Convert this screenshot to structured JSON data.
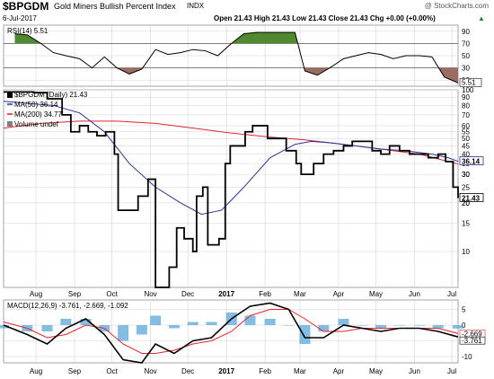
{
  "header": {
    "symbol": "$BPGDM",
    "name": "Gold Miners Bullish Percent Index",
    "exchange": "INDX",
    "watermark": "@ StockCharts.com",
    "date": "6-Jul-2017",
    "quote": "Open 21.43  High 21.43  Low 21.43  Close 21.43  Chg +0.00 (+0.00%)",
    "quote_arrow": "▲"
  },
  "colors": {
    "price": "#000000",
    "ma50": "#2e3192",
    "ma200": "#e0262b",
    "volume": "#808080",
    "rsi_fill_high": "#4f8a2f",
    "rsi_fill_low": "#9a6d62",
    "macd_hist": "#5aa7d8",
    "macd_signal": "#e0262b",
    "grid": "#cfd3d9"
  },
  "chart_data": [
    {
      "type": "line",
      "title": "RSI(14) 5.51",
      "legend": "top-left",
      "grid": true,
      "ylim": [
        0,
        100
      ],
      "ticks": [
        "90",
        "70",
        "50",
        "30",
        "10"
      ],
      "levels": [
        70,
        30
      ],
      "last_label": "5.51",
      "series": [
        {
          "name": "RSI(14)",
          "x": [
            "2017-07-15",
            "2017-07-25",
            "2017-08-05",
            "2017-08-15",
            "2017-08-25",
            "2017-09-05",
            "2017-09-15",
            "2017-09-25",
            "2017-10-05",
            "2017-10-15",
            "2017-10-25",
            "2017-11-05",
            "2017-11-15",
            "2017-11-25",
            "2017-12-05",
            "2017-12-15",
            "2017-12-25",
            "2018-01-05",
            "2018-01-15",
            "2018-01-25",
            "2018-02-05",
            "2018-02-15",
            "2018-02-25",
            "2018-03-05",
            "2018-03-15",
            "2018-03-25",
            "2018-04-05",
            "2018-04-15",
            "2018-04-25",
            "2018-05-05",
            "2018-05-15",
            "2018-05-25",
            "2018-06-05",
            "2018-06-15",
            "2018-06-25",
            "2018-07-06"
          ],
          "values": [
            86,
            84,
            70,
            55,
            50,
            45,
            30,
            48,
            30,
            20,
            28,
            60,
            52,
            55,
            60,
            58,
            50,
            70,
            86,
            88,
            88,
            88,
            88,
            25,
            18,
            30,
            45,
            50,
            55,
            52,
            45,
            50,
            50,
            48,
            15,
            5.51
          ]
        }
      ]
    },
    {
      "type": "line",
      "title": "$BPGDM (Daily) 21.43",
      "legend": "top-left",
      "grid": true,
      "scale": "log",
      "ylim": [
        6,
        100
      ],
      "ticks": [
        "100",
        "90",
        "80",
        "70",
        "60",
        "55",
        "50",
        "45",
        "40",
        "35",
        "30",
        "25",
        "20",
        "15",
        "10"
      ],
      "x_ticks": [
        "Aug",
        "Sep",
        "Oct",
        "Nov",
        "Dec",
        "2017",
        "Feb",
        "Mar",
        "Apr",
        "May",
        "Jun",
        "Jul"
      ],
      "series": [
        {
          "name": "$BPGDM",
          "x": [
            "2017-07-06",
            "2017-07-30",
            "2017-08-10",
            "2017-08-22",
            "2017-08-29",
            "2017-09-05",
            "2017-09-12",
            "2017-09-19",
            "2017-09-26",
            "2017-10-03",
            "2017-10-06",
            "2017-10-15",
            "2017-10-22",
            "2017-10-30",
            "2017-11-05",
            "2017-11-12",
            "2017-11-16",
            "2017-11-22",
            "2017-11-28",
            "2017-12-05",
            "2017-12-08",
            "2017-12-13",
            "2017-12-17",
            "2017-12-21",
            "2017-12-26",
            "2017-12-31",
            "2018-01-04",
            "2018-01-10",
            "2018-01-16",
            "2018-01-22",
            "2018-01-28",
            "2018-02-03",
            "2018-02-10",
            "2018-02-18",
            "2018-02-26",
            "2018-03-02",
            "2018-03-06",
            "2018-03-12",
            "2018-03-20",
            "2018-03-28",
            "2018-04-05",
            "2018-04-12",
            "2018-04-20",
            "2018-04-28",
            "2018-05-05",
            "2018-05-12",
            "2018-05-20",
            "2018-05-28",
            "2018-06-05",
            "2018-06-12",
            "2018-06-20",
            "2018-06-26",
            "2018-07-02",
            "2018-07-06"
          ],
          "values": [
            97,
            96,
            88,
            70,
            55,
            60,
            55,
            52,
            55,
            40,
            18,
            18,
            22,
            28,
            6,
            6,
            8,
            14,
            12,
            10,
            22,
            25,
            11,
            11,
            12,
            35,
            45,
            45,
            55,
            60,
            60,
            50,
            50,
            42,
            35,
            30,
            30,
            35,
            40,
            42,
            45,
            48,
            48,
            42,
            40,
            45,
            42,
            40,
            40,
            38,
            40,
            36,
            25,
            21.43
          ]
        },
        {
          "name": "MA(50) 36.14",
          "x": [
            "2017-07-06",
            "2017-08-15",
            "2017-09-05",
            "2017-09-25",
            "2017-10-15",
            "2017-11-05",
            "2017-11-25",
            "2017-12-12",
            "2017-12-28",
            "2018-01-15",
            "2018-02-05",
            "2018-02-25",
            "2018-03-10",
            "2018-03-25",
            "2018-04-15",
            "2018-05-05",
            "2018-05-25",
            "2018-06-15",
            "2018-06-28",
            "2018-07-06"
          ],
          "values": [
            85,
            80,
            72,
            55,
            35,
            25,
            20,
            17,
            18,
            25,
            38,
            46,
            48,
            47,
            45,
            43,
            42,
            40,
            38,
            36.14
          ]
        },
        {
          "name": "MA(200) 34.77",
          "x": [
            "2017-07-06",
            "2017-08-05",
            "2017-09-05",
            "2017-10-05",
            "2017-11-05",
            "2017-12-05",
            "2018-01-05",
            "2018-02-05",
            "2018-03-05",
            "2018-04-05",
            "2018-05-05",
            "2018-06-05",
            "2018-07-06"
          ],
          "values": [
            58,
            62,
            64,
            64,
            62,
            58,
            54,
            51,
            49,
            46,
            43,
            40,
            34.77
          ]
        }
      ],
      "last_labels": [
        "36.14",
        "30",
        "21.43",
        "20"
      ],
      "volume_label": "Volume undef"
    },
    {
      "type": "line",
      "title": "MACD(12,26,9) -3.761, -2.669, -1.092",
      "legend": "top-left",
      "grid": true,
      "ylim": [
        -12,
        8
      ],
      "ticks": [
        "5",
        "0",
        "-5",
        "-10"
      ],
      "last_labels": [
        "-2.669",
        "-3.761"
      ],
      "x_ticks": [
        "Aug",
        "Sep",
        "Oct",
        "Nov",
        "Dec",
        "2017",
        "Feb",
        "Mar",
        "Apr",
        "May",
        "Jun",
        "Jul"
      ],
      "series": [
        {
          "name": "MACD",
          "x": [
            "2017-07-06",
            "2017-07-25",
            "2017-08-10",
            "2017-08-25",
            "2017-09-10",
            "2017-09-25",
            "2017-10-10",
            "2017-10-25",
            "2017-11-05",
            "2017-11-20",
            "2017-12-05",
            "2017-12-20",
            "2018-01-05",
            "2018-01-20",
            "2018-02-05",
            "2018-02-20",
            "2018-03-05",
            "2018-03-20",
            "2018-04-05",
            "2018-04-20",
            "2018-05-05",
            "2018-05-20",
            "2018-06-05",
            "2018-06-20",
            "2018-07-06"
          ],
          "values": [
            0,
            -3,
            -6,
            -1,
            2,
            -3,
            -11,
            -12,
            -6,
            -9,
            -5,
            -4,
            2,
            6,
            7,
            5,
            -4,
            -4,
            0,
            -1,
            -2,
            -1,
            -1,
            -2,
            -3.761
          ]
        },
        {
          "name": "Signal",
          "x": [
            "2017-07-06",
            "2017-07-25",
            "2017-08-10",
            "2017-08-25",
            "2017-09-10",
            "2017-09-25",
            "2017-10-10",
            "2017-10-25",
            "2017-11-05",
            "2017-11-20",
            "2017-12-05",
            "2017-12-20",
            "2018-01-05",
            "2018-01-20",
            "2018-02-05",
            "2018-02-20",
            "2018-03-05",
            "2018-03-20",
            "2018-04-05",
            "2018-04-20",
            "2018-05-05",
            "2018-05-20",
            "2018-06-05",
            "2018-06-20",
            "2018-07-06"
          ],
          "values": [
            1,
            -1,
            -4,
            -3,
            0,
            -1,
            -6,
            -9,
            -9,
            -8,
            -6,
            -5,
            -2,
            3,
            5,
            5,
            2,
            -2,
            -2,
            -1,
            -1,
            -1,
            -1,
            -1,
            -2.669
          ]
        },
        {
          "name": "Histogram",
          "x": [
            "2017-07-06",
            "2017-07-25",
            "2017-08-10",
            "2017-08-25",
            "2017-09-10",
            "2017-09-25",
            "2017-10-10",
            "2017-10-25",
            "2017-11-05",
            "2017-11-20",
            "2017-12-05",
            "2017-12-20",
            "2018-01-05",
            "2018-01-20",
            "2018-02-05",
            "2018-02-20",
            "2018-03-05",
            "2018-03-20",
            "2018-04-05",
            "2018-04-20",
            "2018-05-05",
            "2018-05-20",
            "2018-06-05",
            "2018-06-20",
            "2018-07-06"
          ],
          "values": [
            -1,
            -2,
            -2,
            2,
            2,
            -2,
            -5,
            -3,
            3,
            -1,
            1,
            1,
            4,
            3,
            2,
            0,
            -6,
            -2,
            2,
            0,
            -1,
            0,
            0,
            -1,
            -1.092
          ]
        }
      ]
    }
  ]
}
